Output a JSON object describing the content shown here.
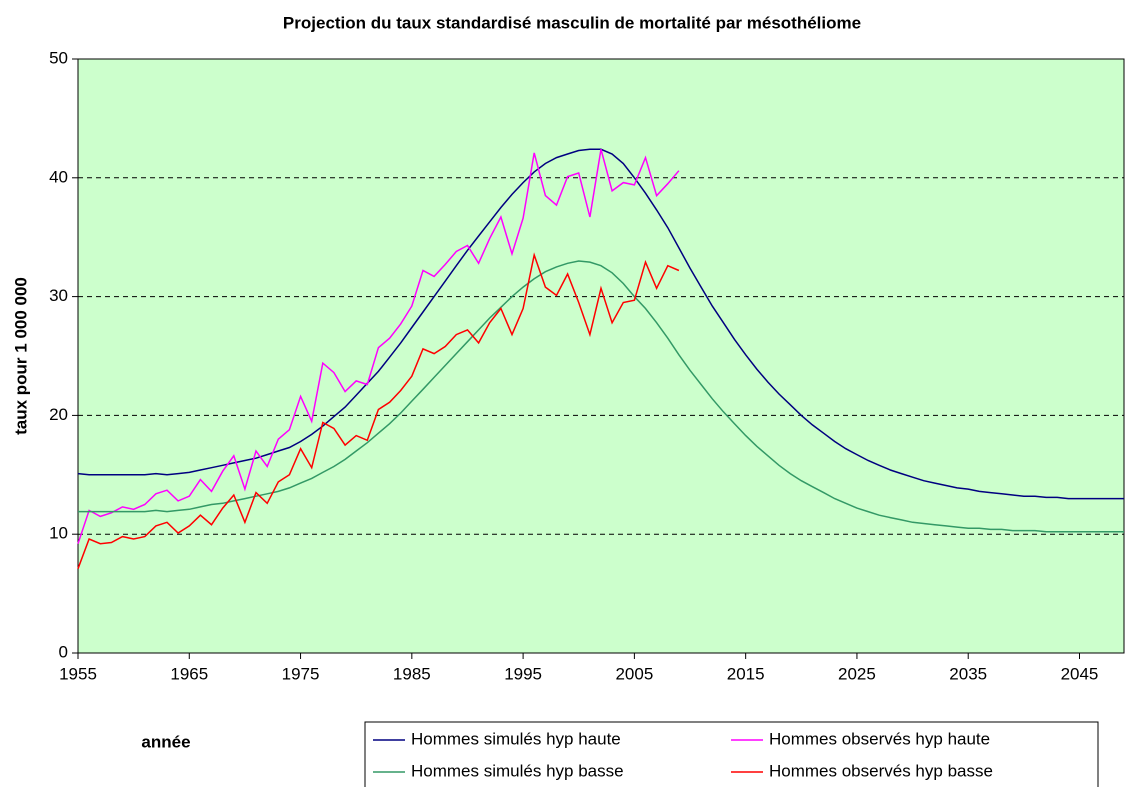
{
  "chart_data": {
    "type": "line",
    "title": "Projection du taux standardisé masculin de mortalité par mésothéliome",
    "x_label": "année",
    "y_label": "taux pour 1 000 000",
    "x": [
      1955,
      1956,
      1957,
      1958,
      1959,
      1960,
      1961,
      1962,
      1963,
      1964,
      1965,
      1966,
      1967,
      1968,
      1969,
      1970,
      1971,
      1972,
      1973,
      1974,
      1975,
      1976,
      1977,
      1978,
      1979,
      1980,
      1981,
      1982,
      1983,
      1984,
      1985,
      1986,
      1987,
      1988,
      1989,
      1990,
      1991,
      1992,
      1993,
      1994,
      1995,
      1996,
      1997,
      1998,
      1999,
      2000,
      2001,
      2002,
      2003,
      2004,
      2005,
      2006,
      2007,
      2008,
      2009,
      2010,
      2011,
      2012,
      2013,
      2014,
      2015,
      2016,
      2017,
      2018,
      2019,
      2020,
      2021,
      2022,
      2023,
      2024,
      2025,
      2026,
      2027,
      2028,
      2029,
      2030,
      2031,
      2032,
      2033,
      2034,
      2035,
      2036,
      2037,
      2038,
      2039,
      2040,
      2041,
      2042,
      2043,
      2044,
      2045,
      2046,
      2047,
      2048,
      2049
    ],
    "series": [
      {
        "name": "Hommes simulés hyp haute",
        "color": "#000080",
        "values": [
          15.1,
          15.0,
          15.0,
          15.0,
          15.0,
          15.0,
          15.0,
          15.1,
          15.0,
          15.1,
          15.2,
          15.4,
          15.6,
          15.8,
          16.0,
          16.2,
          16.4,
          16.7,
          17.0,
          17.3,
          17.8,
          18.4,
          19.1,
          19.9,
          20.7,
          21.7,
          22.7,
          23.7,
          24.9,
          26.1,
          27.4,
          28.7,
          30.0,
          31.3,
          32.6,
          33.9,
          35.1,
          36.3,
          37.5,
          38.6,
          39.6,
          40.5,
          41.2,
          41.7,
          42.0,
          42.3,
          42.4,
          42.4,
          42.0,
          41.2,
          40.0,
          38.7,
          37.3,
          35.8,
          34.1,
          32.4,
          30.8,
          29.2,
          27.8,
          26.4,
          25.1,
          23.9,
          22.8,
          21.8,
          20.9,
          20.0,
          19.2,
          18.5,
          17.8,
          17.2,
          16.7,
          16.2,
          15.8,
          15.4,
          15.1,
          14.8,
          14.5,
          14.3,
          14.1,
          13.9,
          13.8,
          13.6,
          13.5,
          13.4,
          13.3,
          13.2,
          13.2,
          13.1,
          13.1,
          13.0,
          13.0,
          13.0,
          13.0,
          13.0,
          13.0
        ]
      },
      {
        "name": "Hommes observés hyp haute",
        "color": "#ff00ff",
        "values": [
          9.2,
          12.0,
          11.5,
          11.8,
          12.3,
          12.1,
          12.5,
          13.4,
          13.7,
          12.8,
          13.2,
          14.6,
          13.6,
          15.3,
          16.6,
          13.8,
          17.0,
          15.7,
          18.0,
          18.8,
          21.6,
          19.5,
          24.4,
          23.6,
          22.0,
          22.9,
          22.6,
          25.7,
          26.5,
          27.7,
          29.2,
          32.2,
          31.7,
          32.7,
          33.8,
          34.3,
          32.8,
          34.9,
          36.7,
          33.6,
          36.6,
          42.1,
          38.5,
          37.7,
          40.1,
          40.4,
          36.7,
          42.4,
          38.9,
          39.6,
          39.4,
          41.7,
          38.5,
          39.5,
          40.6,
          null,
          null,
          null,
          null,
          null,
          null,
          null,
          null,
          null,
          null,
          null,
          null,
          null,
          null,
          null,
          null,
          null,
          null,
          null,
          null,
          null,
          null,
          null,
          null,
          null,
          null,
          null,
          null,
          null,
          null,
          null,
          null,
          null,
          null,
          null,
          null,
          null,
          null,
          null,
          null
        ]
      },
      {
        "name": "Hommes simulés hyp basse",
        "color": "#339966",
        "values": [
          11.9,
          11.9,
          11.9,
          11.9,
          11.9,
          11.9,
          11.9,
          12.0,
          11.9,
          12.0,
          12.1,
          12.3,
          12.5,
          12.6,
          12.8,
          13.0,
          13.2,
          13.4,
          13.6,
          13.9,
          14.3,
          14.7,
          15.2,
          15.7,
          16.3,
          17.0,
          17.7,
          18.5,
          19.3,
          20.2,
          21.2,
          22.2,
          23.2,
          24.2,
          25.2,
          26.2,
          27.2,
          28.2,
          29.1,
          30.0,
          30.8,
          31.5,
          32.1,
          32.5,
          32.8,
          33.0,
          32.9,
          32.6,
          32.0,
          31.1,
          30.0,
          29.0,
          27.8,
          26.5,
          25.1,
          23.8,
          22.6,
          21.4,
          20.3,
          19.3,
          18.3,
          17.4,
          16.6,
          15.8,
          15.1,
          14.5,
          14.0,
          13.5,
          13.0,
          12.6,
          12.2,
          11.9,
          11.6,
          11.4,
          11.2,
          11.0,
          10.9,
          10.8,
          10.7,
          10.6,
          10.5,
          10.5,
          10.4,
          10.4,
          10.3,
          10.3,
          10.3,
          10.2,
          10.2,
          10.2,
          10.2,
          10.2,
          10.2,
          10.2,
          10.2
        ]
      },
      {
        "name": "Hommes observés hyp basse",
        "color": "#ff0000",
        "values": [
          7.1,
          9.6,
          9.2,
          9.3,
          9.8,
          9.6,
          9.8,
          10.7,
          11.0,
          10.1,
          10.7,
          11.6,
          10.8,
          12.2,
          13.3,
          11.0,
          13.5,
          12.6,
          14.4,
          15.0,
          17.2,
          15.6,
          19.4,
          18.9,
          17.5,
          18.3,
          17.9,
          20.5,
          21.1,
          22.1,
          23.3,
          25.6,
          25.2,
          25.8,
          26.8,
          27.2,
          26.1,
          27.8,
          29.0,
          26.8,
          29.0,
          33.5,
          30.8,
          30.1,
          31.9,
          29.5,
          26.8,
          30.7,
          27.8,
          29.5,
          29.7,
          32.9,
          30.7,
          32.6,
          32.2,
          null,
          null,
          null,
          null,
          null,
          null,
          null,
          null,
          null,
          null,
          null,
          null,
          null,
          null,
          null,
          null,
          null,
          null,
          null,
          null,
          null,
          null,
          null,
          null,
          null,
          null,
          null,
          null,
          null,
          null,
          null,
          null,
          null,
          null,
          null,
          null,
          null,
          null,
          null,
          null
        ]
      }
    ],
    "xlim": [
      1955,
      2049
    ],
    "xticks": [
      1955,
      1965,
      1975,
      1985,
      1995,
      2005,
      2015,
      2025,
      2035,
      2045
    ],
    "ylim": [
      0,
      50
    ],
    "yticks": [
      0,
      10,
      20,
      30,
      40,
      50
    ],
    "grid": true,
    "background": "#ccffcc"
  }
}
